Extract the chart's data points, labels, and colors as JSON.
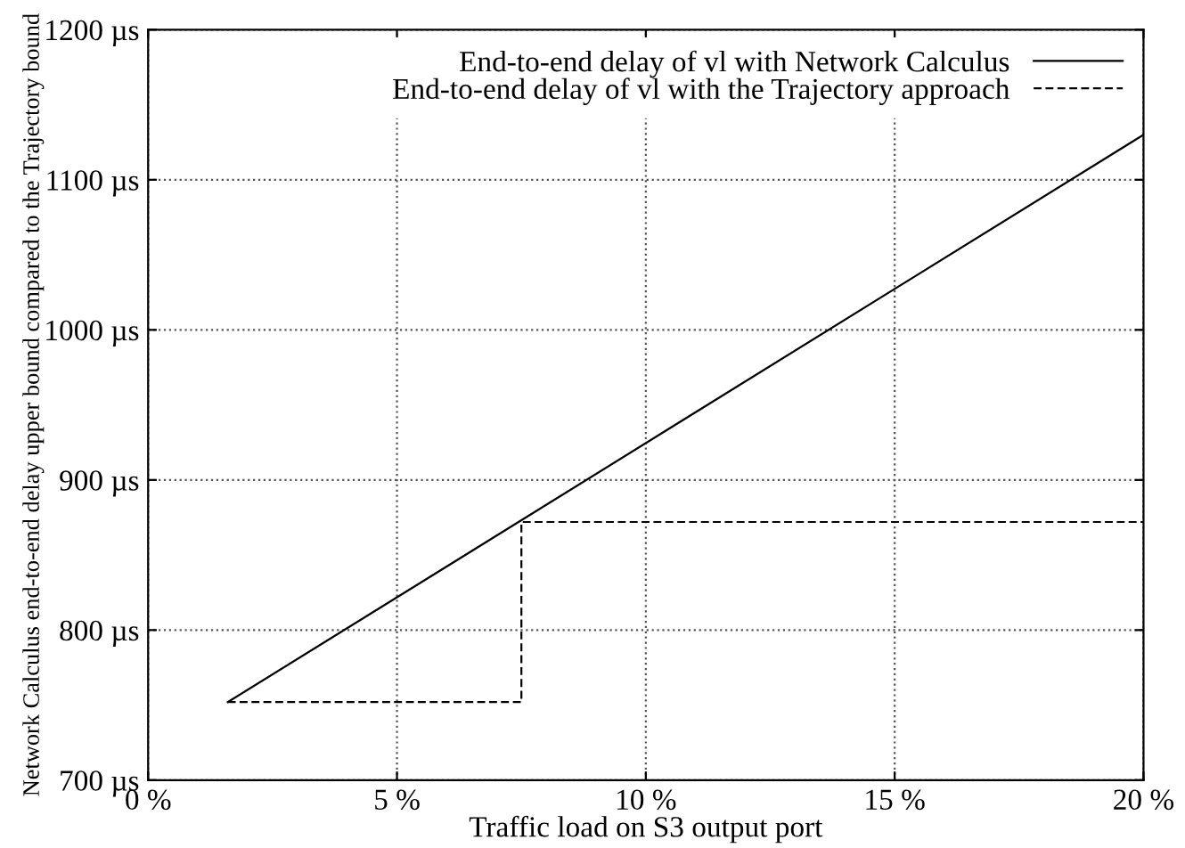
{
  "chart_data": {
    "type": "line",
    "xlabel": "Traffic load on S3 output port",
    "ylabel": "Network Calculus end-to-end delay upper bound compared to the Trajectory bound",
    "series": [
      {
        "name": "End-to-end delay of vl with Network Calculus",
        "color": "#000000",
        "x": [
          1.6,
          20
        ],
        "values": [
          752,
          1130
        ],
        "line_style": "solid"
      },
      {
        "name": "End-to-end delay of vl with the Trajectory approach",
        "color": "#000000",
        "x": [
          1.6,
          7.5,
          7.5,
          20
        ],
        "values": [
          752,
          752,
          872,
          872
        ],
        "line_style": "dashed"
      }
    ],
    "xlim": [
      0,
      20
    ],
    "xticks": [
      {
        "value": 0,
        "label": "0 %"
      },
      {
        "value": 5,
        "label": "5 %"
      },
      {
        "value": 10,
        "label": "10 %"
      },
      {
        "value": 15,
        "label": "15 %"
      },
      {
        "value": 20,
        "label": "20 %"
      }
    ],
    "ylim": [
      700,
      1200
    ],
    "yticks": [
      {
        "value": 700,
        "label": "700 µs"
      },
      {
        "value": 800,
        "label": "800 µs"
      },
      {
        "value": 900,
        "label": "900 µs"
      },
      {
        "value": 1000,
        "label": "1000 µs"
      },
      {
        "value": 1100,
        "label": "1100 µs"
      },
      {
        "value": 1200,
        "label": "1200 µs"
      }
    ],
    "grid": true,
    "legend": "top right",
    "marker": "none"
  }
}
